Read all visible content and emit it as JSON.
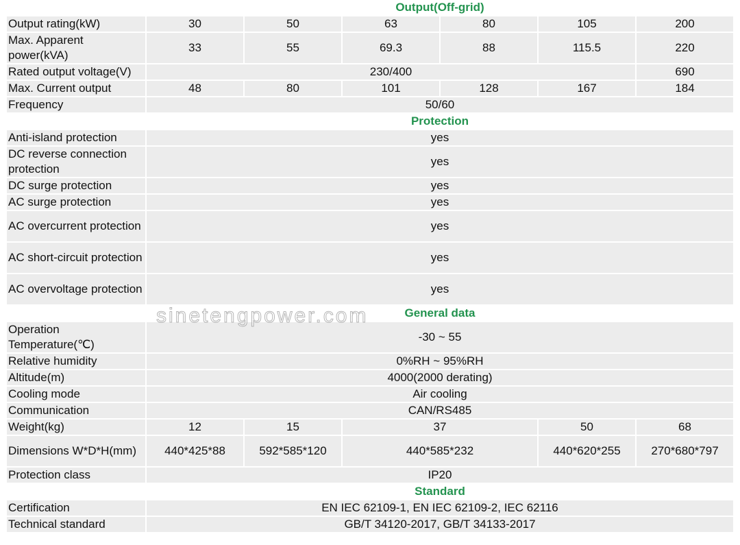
{
  "watermark": "sinetengpower.com",
  "rows": [
    {
      "section": "Output(Off-grid)"
    },
    {
      "label": "Output rating(kW)",
      "cells": [
        {
          "t": "30"
        },
        {
          "t": "50"
        },
        {
          "t": "63"
        },
        {
          "t": "80"
        },
        {
          "t": "105"
        },
        {
          "t": "200"
        }
      ]
    },
    {
      "label": "Max. Apparent power(kVA)",
      "tall": true,
      "cells": [
        {
          "t": "33"
        },
        {
          "t": "55"
        },
        {
          "t": "69.3"
        },
        {
          "t": "88"
        },
        {
          "t": "115.5"
        },
        {
          "t": "220"
        }
      ]
    },
    {
      "label": "Rated output voltage(V)",
      "cells": [
        {
          "t": "230/400",
          "span": 5
        },
        {
          "t": "690"
        }
      ]
    },
    {
      "label": "Max. Current output",
      "cells": [
        {
          "t": "48"
        },
        {
          "t": "80"
        },
        {
          "t": "101"
        },
        {
          "t": "128"
        },
        {
          "t": "167"
        },
        {
          "t": "184"
        }
      ]
    },
    {
      "label": "Frequency",
      "cells": [
        {
          "t": "50/60",
          "span": 6
        }
      ]
    },
    {
      "section": "Protection"
    },
    {
      "label": "Anti-island protection",
      "cells": [
        {
          "t": "yes",
          "span": 6
        }
      ]
    },
    {
      "label": "DC reverse connection protection",
      "tall": true,
      "cells": [
        {
          "t": "yes",
          "span": 6
        }
      ]
    },
    {
      "label": "DC surge protection",
      "cells": [
        {
          "t": "yes",
          "span": 6
        }
      ]
    },
    {
      "label": "AC surge protection",
      "cells": [
        {
          "t": "yes",
          "span": 6
        }
      ]
    },
    {
      "label": "AC overcurrent protection",
      "tall": true,
      "cells": [
        {
          "t": "yes",
          "span": 6
        }
      ]
    },
    {
      "label": "AC short-circuit protection",
      "tall": true,
      "cells": [
        {
          "t": "yes",
          "span": 6
        }
      ]
    },
    {
      "label": "AC overvoltage protection",
      "tall": true,
      "cells": [
        {
          "t": "yes",
          "span": 6
        }
      ]
    },
    {
      "section": "General data"
    },
    {
      "label": "Operation Temperature(℃)",
      "tall": true,
      "cells": [
        {
          "t": "-30 ~ 55",
          "span": 6
        }
      ]
    },
    {
      "label": "Relative humidity",
      "cells": [
        {
          "t": "0%RH ~ 95%RH",
          "span": 6
        }
      ]
    },
    {
      "label": "Altitude(m)",
      "cells": [
        {
          "t": "4000(2000 derating)",
          "span": 6
        }
      ]
    },
    {
      "label": "Cooling mode",
      "cells": [
        {
          "t": "Air cooling",
          "span": 6
        }
      ]
    },
    {
      "label": "Communication",
      "cells": [
        {
          "t": "CAN/RS485",
          "span": 6
        }
      ]
    },
    {
      "label": "Weight(kg)",
      "cells": [
        {
          "t": "12"
        },
        {
          "t": "15"
        },
        {
          "t": "37",
          "span": 2
        },
        {
          "t": "50"
        },
        {
          "t": "68"
        }
      ]
    },
    {
      "label": "Dimensions W*D*H(mm)",
      "tall": true,
      "cells": [
        {
          "t": "440*425*88"
        },
        {
          "t": "592*585*120"
        },
        {
          "t": "440*585*232",
          "span": 2
        },
        {
          "t": "440*620*255"
        },
        {
          "t": "270*680*797"
        }
      ]
    },
    {
      "label": "Protection class",
      "cells": [
        {
          "t": "IP20",
          "span": 6
        }
      ]
    },
    {
      "section": "Standard"
    },
    {
      "label": "Certification",
      "cells": [
        {
          "t": "EN IEC 62109-1, EN IEC 62109-2, IEC 62116",
          "span": 6
        }
      ]
    },
    {
      "label": "Technical standard",
      "cells": [
        {
          "t": "GB/T 34120-2017, GB/T 34133-2017",
          "span": 6
        }
      ]
    }
  ]
}
